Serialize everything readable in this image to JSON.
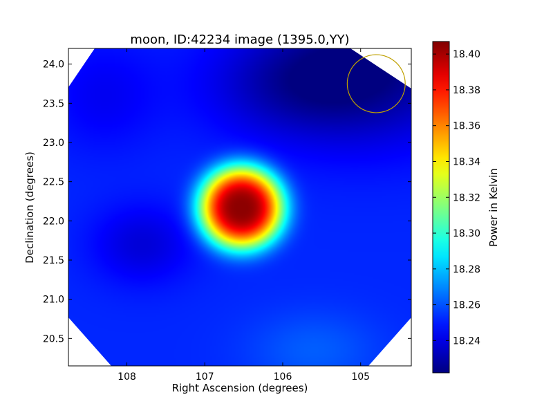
{
  "chart_data": {
    "type": "heatmap",
    "title": "moon, ID:42234 image (1395.0,YY)",
    "xlabel": "Right Ascension (degrees)",
    "ylabel": "Declination (degrees)",
    "xlim": [
      108.75,
      104.35
    ],
    "ylim": [
      20.15,
      24.2
    ],
    "x_ticks": [
      108,
      107,
      106,
      105
    ],
    "x_tick_labels": [
      "108",
      "107",
      "106",
      "105"
    ],
    "y_ticks": [
      20.5,
      21.0,
      21.5,
      22.0,
      22.5,
      23.0,
      23.5,
      24.0
    ],
    "y_tick_labels": [
      "20.5",
      "21.0",
      "21.5",
      "22.0",
      "22.5",
      "23.0",
      "23.5",
      "24.0"
    ],
    "colorbar": {
      "label": "Power in Kelvin",
      "colormap": "jet",
      "range": [
        18.222,
        18.407
      ],
      "ticks": [
        18.24,
        18.26,
        18.28,
        18.3,
        18.32,
        18.34,
        18.36,
        18.38,
        18.4
      ],
      "tick_labels": [
        "18.24",
        "18.26",
        "18.28",
        "18.30",
        "18.32",
        "18.34",
        "18.36",
        "18.38",
        "18.40"
      ]
    },
    "background_level": 18.252,
    "peak": {
      "ra": 106.53,
      "dec": 22.17,
      "value": 18.405
    },
    "features": [
      {
        "type": "hotspot",
        "ra": 106.53,
        "dec": 22.17,
        "value": 18.405,
        "sigma_ra": 0.38,
        "sigma_dec": 0.37
      },
      {
        "type": "coldspot",
        "ra": 107.8,
        "dec": 21.7,
        "value": 18.238,
        "sigma_ra": 0.45,
        "sigma_dec": 0.35
      },
      {
        "type": "coldspot",
        "ra": 104.9,
        "dec": 24.0,
        "value": 18.224,
        "sigma_ra": 1.0,
        "sigma_dec": 0.7
      },
      {
        "type": "coldspot",
        "ra": 105.9,
        "dec": 23.7,
        "value": 18.238,
        "sigma_ra": 0.8,
        "sigma_dec": 0.45
      },
      {
        "type": "coldspot",
        "ra": 108.3,
        "dec": 23.6,
        "value": 18.243,
        "sigma_ra": 0.5,
        "sigma_dec": 0.5
      },
      {
        "type": "warmspot",
        "ra": 105.6,
        "dec": 20.35,
        "value": 18.262,
        "sigma_ra": 0.6,
        "sigma_dec": 0.35
      }
    ],
    "beam_circle": {
      "ra": 104.8,
      "dec": 23.75,
      "radius_deg": 0.37,
      "color": "#bfa000"
    },
    "no_data_color": "#ffffff"
  }
}
